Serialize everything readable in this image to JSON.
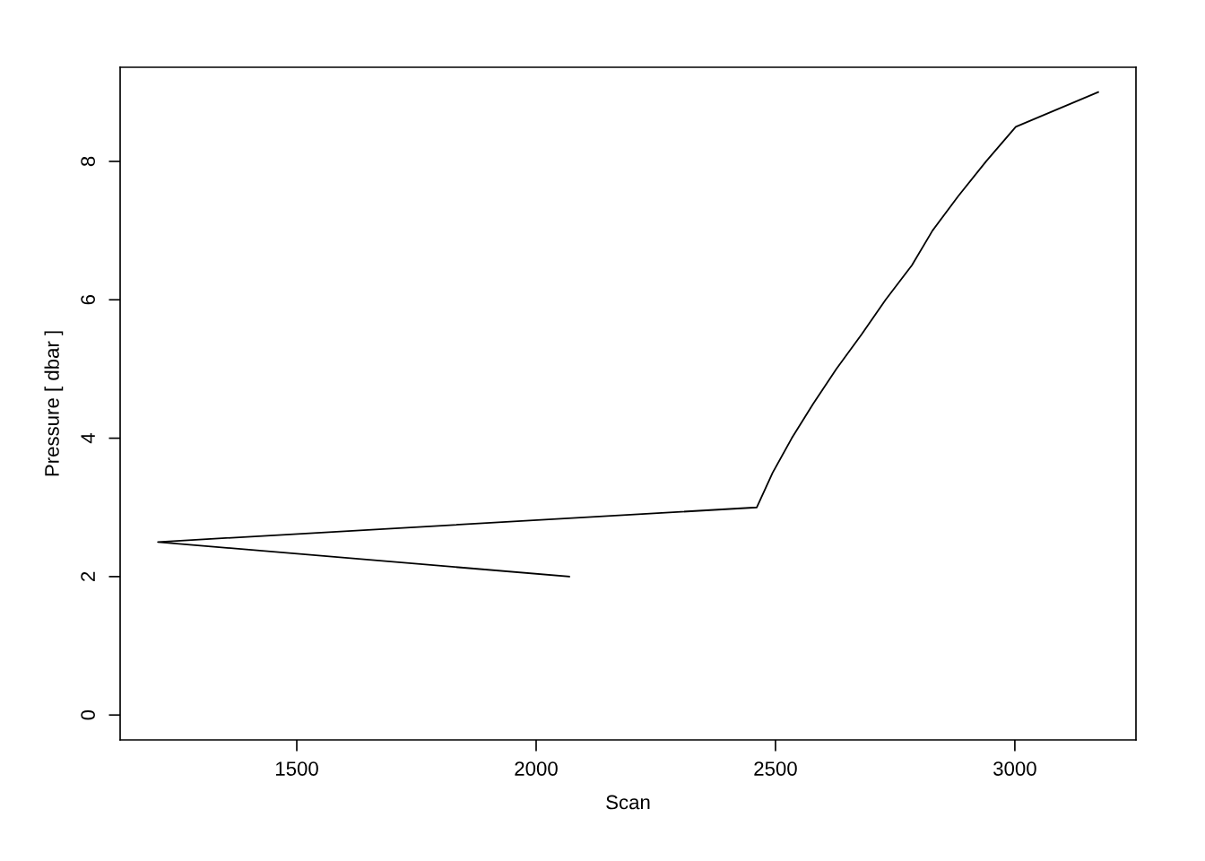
{
  "chart_data": {
    "type": "line",
    "xlabel": "Scan",
    "ylabel": "Pressure [ dbar ]",
    "x": [
      2069,
      1210,
      2461,
      2494,
      2534,
      2579,
      2627,
      2680,
      2730,
      2785,
      2828,
      2882,
      2940,
      3002,
      3174
    ],
    "series": [
      {
        "color": "#000000",
        "values": [
          2,
          2.5,
          3,
          3.5,
          4,
          4.5,
          5,
          5.5,
          6,
          6.5,
          7,
          7.5,
          8,
          8.5,
          9
        ]
      }
    ],
    "xlim": [
      1131,
      3253
    ],
    "ylim": [
      -0.36,
      9.36
    ],
    "xticks": [
      1500,
      2000,
      2500,
      3000
    ],
    "yticks": [
      0,
      2,
      4,
      6,
      8
    ],
    "grid": false,
    "marker": "none",
    "line_style": "solid"
  }
}
